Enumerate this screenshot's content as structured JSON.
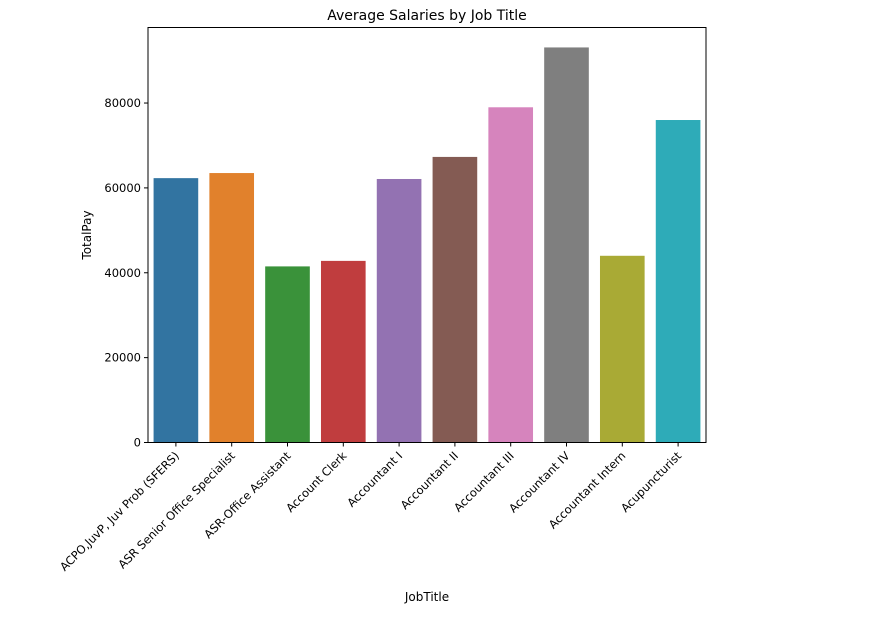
{
  "chart_data": {
    "type": "bar",
    "title": "Average Salaries by Job Title",
    "xlabel": "JobTitle",
    "ylabel": "TotalPay",
    "categories": [
      "ACPO,JuvP, Juv Prob (SFERS)",
      "ASR Senior Office Specialist",
      "ASR-Office Assistant",
      "Account Clerk",
      "Accountant I",
      "Accountant II",
      "Accountant III",
      "Accountant IV",
      "Accountant Intern",
      "Acupuncturist"
    ],
    "values": [
      62300,
      63500,
      41500,
      42800,
      62100,
      67300,
      79000,
      93100,
      44000,
      76000
    ],
    "colors": [
      "#3274a1",
      "#e1812c",
      "#3a923a",
      "#c03d3e",
      "#9372b2",
      "#845b53",
      "#d684bd",
      "#7f7f7f",
      "#a9aa35",
      "#2eabb8"
    ],
    "ylim": [
      0,
      97800
    ],
    "yticks": [
      0,
      20000,
      40000,
      60000,
      80000
    ],
    "grid": false,
    "legend": "none"
  }
}
